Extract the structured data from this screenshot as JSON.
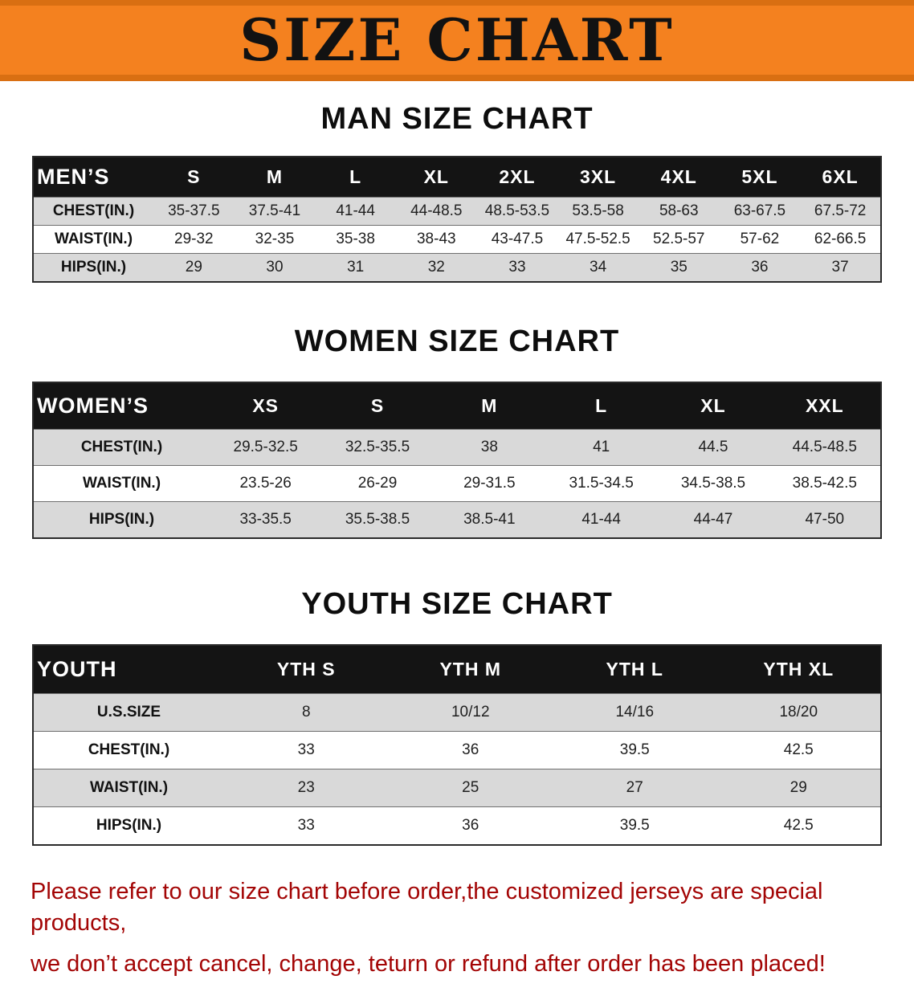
{
  "banner": {
    "title": "SIZE CHART"
  },
  "colors": {
    "banner_orange": "#f4811f",
    "banner_stripe": "#d96f12",
    "table_header_black": "#141414",
    "row_gray": "#d9d9d9",
    "notice_red": "#a30505"
  },
  "sections": [
    {
      "id": "men",
      "heading": "MAN SIZE CHART",
      "table": {
        "header": [
          "MEN’S",
          "S",
          "M",
          "L",
          "XL",
          "2XL",
          "3XL",
          "4XL",
          "5XL",
          "6XL"
        ],
        "rows": [
          [
            "CHEST(IN.)",
            "35-37.5",
            "37.5-41",
            "41-44",
            "44-48.5",
            "48.5-53.5",
            "53.5-58",
            "58-63",
            "63-67.5",
            "67.5-72"
          ],
          [
            "WAIST(IN.)",
            "29-32",
            "32-35",
            "35-38",
            "38-43",
            "43-47.5",
            "47.5-52.5",
            "52.5-57",
            "57-62",
            "62-66.5"
          ],
          [
            "HIPS(IN.)",
            "29",
            "30",
            "31",
            "32",
            "33",
            "34",
            "35",
            "36",
            "37"
          ]
        ]
      }
    },
    {
      "id": "women",
      "heading": "WOMEN SIZE CHART",
      "table": {
        "header": [
          "WOMEN’S",
          "XS",
          "S",
          "M",
          "L",
          "XL",
          "XXL"
        ],
        "rows": [
          [
            "CHEST(IN.)",
            "29.5-32.5",
            "32.5-35.5",
            "38",
            "41",
            "44.5",
            "44.5-48.5"
          ],
          [
            "WAIST(IN.)",
            "23.5-26",
            "26-29",
            "29-31.5",
            "31.5-34.5",
            "34.5-38.5",
            "38.5-42.5"
          ],
          [
            "HIPS(IN.)",
            "33-35.5",
            "35.5-38.5",
            "38.5-41",
            "41-44",
            "44-47",
            "47-50"
          ]
        ]
      }
    },
    {
      "id": "youth",
      "heading": "YOUTH SIZE CHART",
      "table": {
        "header": [
          "YOUTH",
          "YTH S",
          "YTH M",
          "YTH L",
          "YTH XL"
        ],
        "rows": [
          [
            "U.S.SIZE",
            "8",
            "10/12",
            "14/16",
            "18/20"
          ],
          [
            "CHEST(IN.)",
            "33",
            "36",
            "39.5",
            "42.5"
          ],
          [
            "WAIST(IN.)",
            "23",
            "25",
            "27",
            "29"
          ],
          [
            "HIPS(IN.)",
            "33",
            "36",
            "39.5",
            "42.5"
          ]
        ]
      }
    }
  ],
  "footer": {
    "line1": "Please refer to our size chart before order,the customized jerseys are special products,",
    "line2": "we don’t accept cancel, change, teturn or refund after order has been placed!"
  }
}
